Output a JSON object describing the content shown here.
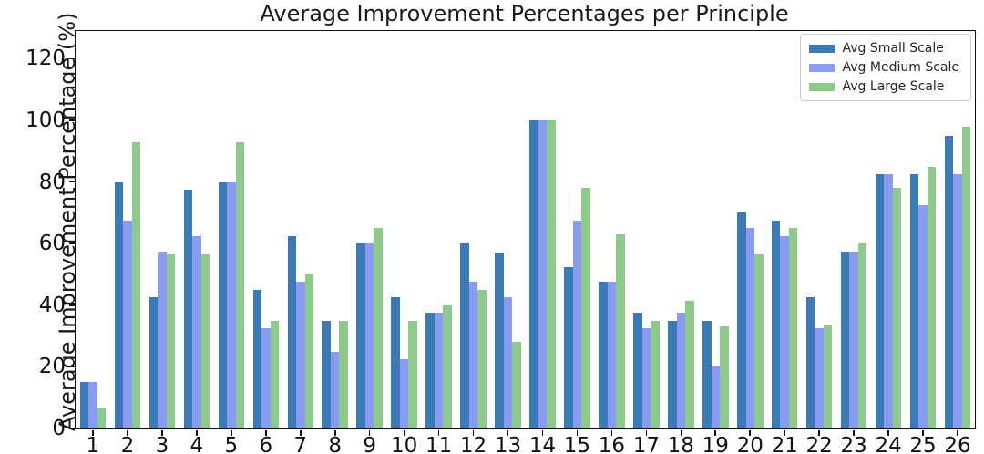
{
  "figure": {
    "background": "#ffffff",
    "spine_color": "#111111",
    "text_color": "#111111"
  },
  "chart_data": {
    "type": "bar",
    "title": "Average Improvement Percentages per Principle",
    "xlabel": "",
    "ylabel": "Average Improvement Percentage (%)",
    "categories": [
      "1",
      "2",
      "3",
      "4",
      "5",
      "6",
      "7",
      "8",
      "9",
      "10",
      "11",
      "12",
      "13",
      "14",
      "15",
      "16",
      "17",
      "18",
      "19",
      "20",
      "21",
      "22",
      "23",
      "24",
      "25",
      "26"
    ],
    "series": [
      {
        "name": "Avg Small Scale",
        "color": "#3a7ab6",
        "values": [
          15,
          80,
          42.5,
          77.5,
          80,
          45,
          62.5,
          35,
          60,
          42.5,
          37.5,
          60,
          57,
          100,
          52.5,
          47.5,
          37.5,
          35,
          35,
          70,
          67.5,
          42.5,
          57.5,
          82.5,
          82.5,
          95
        ]
      },
      {
        "name": "Avg Medium Scale",
        "color": "#8a9bf2",
        "values": [
          15,
          67.5,
          57.5,
          62.5,
          80,
          32.5,
          47.5,
          25,
          60,
          22.5,
          37.5,
          47.5,
          42.5,
          100,
          67.5,
          47.5,
          32.5,
          37.5,
          20,
          65,
          62.5,
          32.5,
          57.5,
          82.5,
          72.5,
          82.5
        ]
      },
      {
        "name": "Avg Large Scale",
        "color": "#8fca8d",
        "values": [
          6.5,
          93,
          56.5,
          56.5,
          93,
          35,
          50,
          35,
          65,
          35,
          40,
          45,
          28,
          100,
          78,
          63,
          35,
          41.5,
          33,
          56.5,
          65,
          33.5,
          60,
          78,
          85,
          98
        ]
      }
    ],
    "ylim": [
      0,
      129
    ],
    "yticks": [
      0,
      20,
      40,
      60,
      80,
      100,
      120
    ],
    "grid": false,
    "legend_position": "upper right"
  }
}
